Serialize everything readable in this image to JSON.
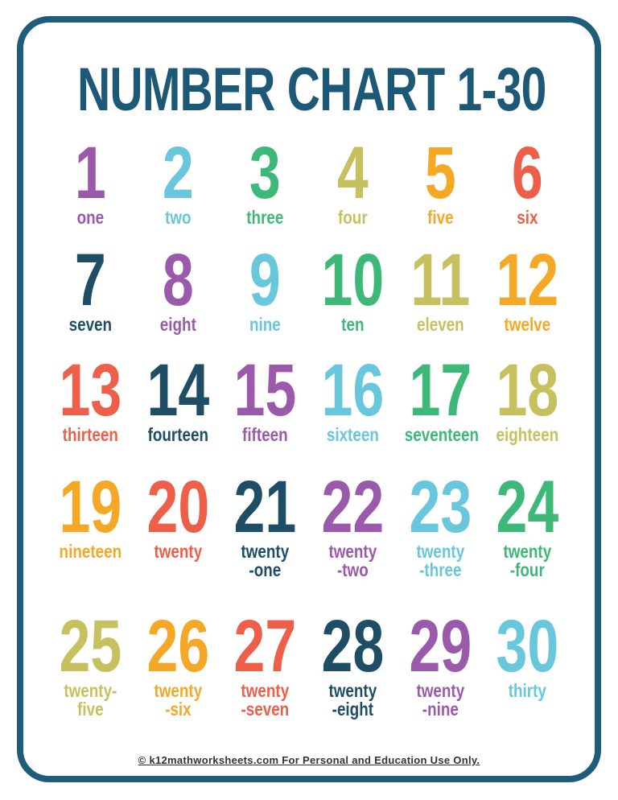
{
  "page": {
    "title": "NUMBER CHART 1-30",
    "footer_text": "© k12mathworksheets.com For Personal and Education Use Only."
  },
  "colors": {
    "border": "#1d5c7a",
    "title": "#1d5877",
    "purple": "#9b59ac",
    "sky": "#68c6dd",
    "green": "#3eb878",
    "khaki": "#c6c05f",
    "amber": "#f4a826",
    "coral": "#ee5f4a",
    "deep_teal": "#1d4e66",
    "footer_text_color": "#333333"
  },
  "numbers": [
    {
      "num": "1",
      "word": "one",
      "color": "#9b59ac"
    },
    {
      "num": "2",
      "word": "two",
      "color": "#68c6dd"
    },
    {
      "num": "3",
      "word": "three",
      "color": "#3eb878"
    },
    {
      "num": "4",
      "word": "four",
      "color": "#c6c05f"
    },
    {
      "num": "5",
      "word": "five",
      "color": "#f4a826"
    },
    {
      "num": "6",
      "word": "six",
      "color": "#ee5f4a"
    },
    {
      "num": "7",
      "word": "seven",
      "color": "#1d4e66"
    },
    {
      "num": "8",
      "word": "eight",
      "color": "#9b59ac"
    },
    {
      "num": "9",
      "word": "nine",
      "color": "#68c6dd"
    },
    {
      "num": "10",
      "word": "ten",
      "color": "#3eb878"
    },
    {
      "num": "11",
      "word": "eleven",
      "color": "#c6c05f"
    },
    {
      "num": "12",
      "word": "twelve",
      "color": "#f4a826"
    },
    {
      "num": "13",
      "word": "thirteen",
      "color": "#ee5f4a"
    },
    {
      "num": "14",
      "word": "fourteen",
      "color": "#1d4e66"
    },
    {
      "num": "15",
      "word": "fifteen",
      "color": "#9b59ac"
    },
    {
      "num": "16",
      "word": "sixteen",
      "color": "#68c6dd"
    },
    {
      "num": "17",
      "word": "seventeen",
      "color": "#3eb878"
    },
    {
      "num": "18",
      "word": "eighteen",
      "color": "#c6c05f"
    },
    {
      "num": "19",
      "word": "nineteen",
      "color": "#f4a826"
    },
    {
      "num": "20",
      "word": "twenty",
      "color": "#ee5f4a"
    },
    {
      "num": "21",
      "word": "twenty\n-one",
      "color": "#1d4e66"
    },
    {
      "num": "22",
      "word": "twenty\n-two",
      "color": "#9b59ac"
    },
    {
      "num": "23",
      "word": "twenty\n-three",
      "color": "#68c6dd"
    },
    {
      "num": "24",
      "word": "twenty\n-four",
      "color": "#3eb878"
    },
    {
      "num": "25",
      "word": "twenty-\nfive",
      "color": "#c6c05f"
    },
    {
      "num": "26",
      "word": "twenty\n-six",
      "color": "#f4a826"
    },
    {
      "num": "27",
      "word": "twenty\n-seven",
      "color": "#ee5f4a"
    },
    {
      "num": "28",
      "word": "twenty\n-eight",
      "color": "#1d4e66"
    },
    {
      "num": "29",
      "word": "twenty\n-nine",
      "color": "#9b59ac"
    },
    {
      "num": "30",
      "word": "thirty",
      "color": "#68c6dd"
    }
  ]
}
